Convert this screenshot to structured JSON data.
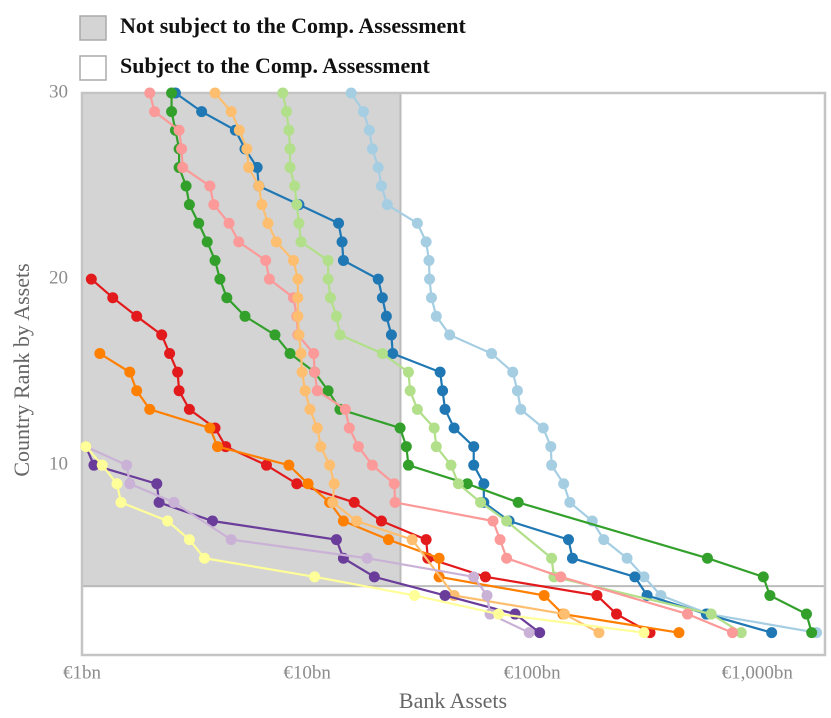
{
  "chart_data": {
    "type": "line",
    "xlabel": "Bank Assets",
    "ylabel": "Country Rank by Assets",
    "legend": [
      {
        "label": "Not subject to the Comp. Assessment",
        "color": "#d4d4d4"
      },
      {
        "label": "Subject to the Comp. Assessment",
        "color": "#ffffff"
      }
    ],
    "region": {
      "xmax": 26,
      "ymin": 3.5,
      "color": "#d4d4d4"
    },
    "log_x": true,
    "xlim": [
      1,
      2000
    ],
    "ylim": [
      -0.2,
      30
    ],
    "xticks": [
      {
        "value": 1,
        "label": "€1bn"
      },
      {
        "value": 10,
        "label": "€10bn"
      },
      {
        "value": 100,
        "label": "€100bn"
      },
      {
        "value": 1000,
        "label": "€1,000bn"
      }
    ],
    "yticks": [
      10,
      20,
      30
    ],
    "series": [
      {
        "color": "#a6cee3",
        "x": [
          1835,
          610,
          373,
          314,
          264,
          208,
          185,
          147,
          138,
          122,
          121,
          112,
          89,
          86,
          82,
          66,
          43,
          37.5,
          35.7,
          35,
          34.8,
          33.8,
          30.9,
          22.7,
          21.4,
          20.7,
          19.5,
          18.9,
          17.8,
          15.7
        ],
        "values": [
          1,
          2,
          3,
          4,
          5,
          6,
          7,
          8,
          9,
          10,
          11,
          12,
          13,
          14,
          15,
          16,
          17,
          18,
          19,
          20,
          21,
          22,
          23,
          24,
          25,
          26,
          27,
          28,
          29,
          30
        ]
      },
      {
        "color": "#1f78b4",
        "x": [
          1159,
          594,
          324,
          286,
          151,
          145,
          79,
          61,
          61,
          55,
          55,
          45,
          41,
          40,
          39,
          24,
          23.7,
          22.5,
          21.6,
          20.7,
          14.5,
          14.3,
          13.8,
          9.2,
          6.1,
          6.0,
          5.3,
          4.8,
          3.4,
          2.6
        ],
        "values": [
          1,
          2,
          3,
          4,
          5,
          6,
          7,
          8,
          9,
          10,
          11,
          12,
          13,
          14,
          15,
          16,
          17,
          18,
          19,
          20,
          21,
          22,
          23,
          24,
          25,
          26,
          27,
          28,
          29,
          30
        ]
      },
      {
        "color": "#33a02c",
        "x": [
          1745,
          1655,
          1138,
          1064,
          601,
          86.7,
          51.5,
          28.2,
          27.6,
          25.9,
          14,
          12.4,
          10.8,
          8.4,
          7.2,
          5.3,
          4.4,
          4.1,
          3.9,
          3.6,
          3.3,
          3.0,
          2.9,
          2.7,
          2.7,
          2.6,
          2.5,
          2.5
        ],
        "values": [
          1,
          2,
          3,
          4,
          5,
          8,
          9,
          10,
          11,
          12,
          13,
          14,
          15,
          16,
          17,
          18,
          19,
          20,
          21,
          22,
          23,
          24,
          25,
          26,
          27,
          28,
          29,
          30
        ]
      },
      {
        "color": "#b2df8a",
        "x": [
          849,
          624,
          125,
          122,
          77,
          59,
          47,
          43.6,
          37.5,
          36.7,
          30.9,
          28.7,
          28.2,
          21.6,
          14,
          13.5,
          12.7,
          12.4,
          12.4,
          9.4,
          9.2,
          9.0,
          8.8,
          8.4,
          8.4,
          8.3,
          8.1,
          7.8
        ],
        "values": [
          1,
          2,
          4,
          5,
          7,
          8,
          9,
          10,
          11,
          12,
          13,
          14,
          15,
          16,
          17,
          18,
          19,
          20,
          21,
          22,
          23,
          24,
          25,
          26,
          27,
          28,
          29,
          30
        ]
      },
      {
        "color": "#e31a1c",
        "x": [
          334,
          237,
          194,
          62,
          34.4,
          33.8,
          21.4,
          16.2,
          9.0,
          6.6,
          4.35,
          3.9,
          3.0,
          2.7,
          2.66,
          2.45,
          2.26,
          1.75,
          1.37,
          1.1
        ],
        "values": [
          1,
          2,
          3,
          4,
          5,
          6,
          7,
          8,
          9,
          10,
          11,
          12,
          13,
          14,
          15,
          16,
          17,
          18,
          19,
          20
        ]
      },
      {
        "color": "#ff7f00",
        "x": [
          449,
          137,
          113,
          38.6,
          38.6,
          23,
          14.5,
          12.6,
          10.1,
          8.3,
          4.0,
          3.7,
          2.0,
          1.75,
          1.63,
          1.2
        ],
        "values": [
          1,
          2,
          3,
          4,
          5,
          6,
          7,
          8,
          9,
          10,
          11,
          12,
          13,
          14,
          15,
          16
        ]
      },
      {
        "color": "#fb9a99",
        "x": [
          776,
          490,
          134,
          77,
          72,
          67,
          24.6,
          24.4,
          19.5,
          16.9,
          15.4,
          14.8,
          11.1,
          10.8,
          10.7,
          9.1,
          9.0,
          8.7,
          6.8,
          6.55,
          4.97,
          4.5,
          3.85,
          3.7,
          2.8,
          2.77,
          2.7,
          2.1,
          2.0
        ],
        "values": [
          1,
          2,
          4,
          5,
          6,
          7,
          8,
          9,
          10,
          11,
          12,
          13,
          14,
          15,
          16,
          17,
          18,
          19,
          20,
          21,
          22,
          23,
          24,
          25,
          26,
          27,
          28,
          29,
          30
        ]
      },
      {
        "color": "#fdbf6f",
        "x": [
          198,
          139,
          45,
          29.3,
          16.6,
          13.0,
          13.2,
          12.6,
          11.5,
          11.1,
          10.3,
          9.8,
          9.5,
          9.4,
          9.2,
          9.1,
          9.1,
          9.1,
          8.7,
          7.3,
          6.7,
          6.3,
          6.1,
          5.5,
          5.4,
          5.0,
          4.6,
          3.9
        ],
        "values": [
          1,
          2,
          3,
          6,
          7,
          8,
          9,
          10,
          11,
          12,
          13,
          14,
          15,
          16,
          17,
          18,
          19,
          20,
          21,
          22,
          23,
          24,
          25,
          26,
          27,
          28,
          29,
          30
        ]
      },
      {
        "color": "#6a3d9a",
        "x": [
          108,
          84,
          41,
          19.9,
          14.5,
          13.5,
          3.8,
          2.2,
          2.15,
          1.13,
          1.04
        ],
        "values": [
          1,
          2,
          3,
          4,
          5,
          6,
          7,
          8,
          9,
          10,
          11
        ]
      },
      {
        "color": "#cab2d6",
        "x": [
          97,
          65,
          63,
          55,
          18.5,
          4.6,
          2.56,
          1.63,
          1.58,
          1.04
        ],
        "values": [
          1,
          2,
          3,
          4,
          5,
          6,
          8,
          9,
          10,
          11
        ]
      },
      {
        "color": "#ffff99",
        "x": [
          314,
          71,
          30,
          10.8,
          3.5,
          3.0,
          2.4,
          1.49,
          1.43,
          1.23,
          1.04
        ],
        "values": [
          1,
          2,
          3,
          4,
          5,
          6,
          7,
          8,
          9,
          10,
          11
        ]
      }
    ]
  }
}
